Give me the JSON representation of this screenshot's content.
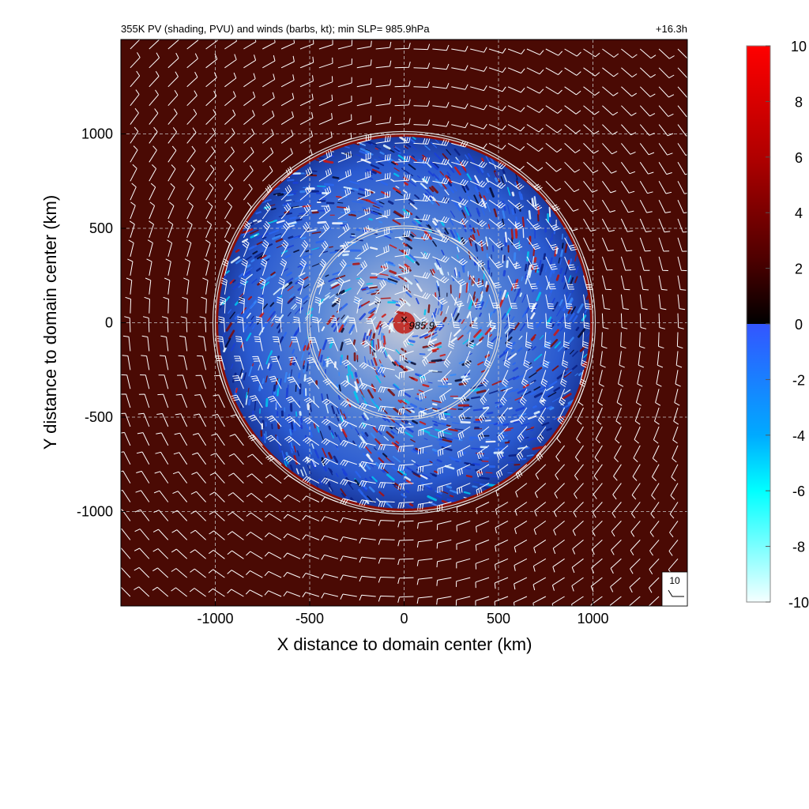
{
  "chart_data": {
    "type": "heatmap",
    "title": "355K PV (shading, PVU) and winds (barbs, kt); min SLP=  985.9hPa",
    "time_label": "+16.3h",
    "xlabel": "X distance to domain center (km)",
    "ylabel": "Y distance to domain center (km)",
    "xlim": [
      -1500,
      1500
    ],
    "ylim": [
      -1500,
      1500
    ],
    "x_ticks": [
      -1000,
      -500,
      0,
      500,
      1000
    ],
    "y_ticks": [
      1000,
      500,
      0,
      -500,
      -1000
    ],
    "x_tick_labels": [
      "-1000",
      "-500",
      "0",
      "500",
      "1000"
    ],
    "y_tick_labels": [
      "1000",
      "500",
      "0",
      "-500",
      "-1000"
    ],
    "grid": true,
    "variable": "355K PV (PVU)",
    "colorbar": {
      "range": [
        -10,
        10
      ],
      "ticks": [
        10,
        8,
        6,
        4,
        2,
        0,
        -2,
        -4,
        -6,
        -8,
        -10
      ],
      "tick_labels": [
        "10",
        "8",
        "6",
        "4",
        "2",
        "0",
        "-2",
        "-4",
        "-6",
        "-8",
        "-10"
      ],
      "colors_positive": [
        "#050000",
        "#3a0000",
        "#8b0000",
        "#d00000",
        "#ff0000"
      ],
      "colors_negative": [
        "#3355ff",
        "#00bbee",
        "#00ffff",
        "#aaf0ff",
        "#f5ffff"
      ]
    },
    "rings_km": [
      500,
      1000
    ],
    "min_slp_marker": {
      "x": 0,
      "y": 20,
      "label": "985.9"
    },
    "barb_reference": {
      "label": "10",
      "units": "kt"
    },
    "colors": {
      "ambient_pv": "#4a0a04",
      "ring": "#d8d8d8",
      "barb": "#ffffff",
      "grid": "#c8c8c8"
    }
  }
}
